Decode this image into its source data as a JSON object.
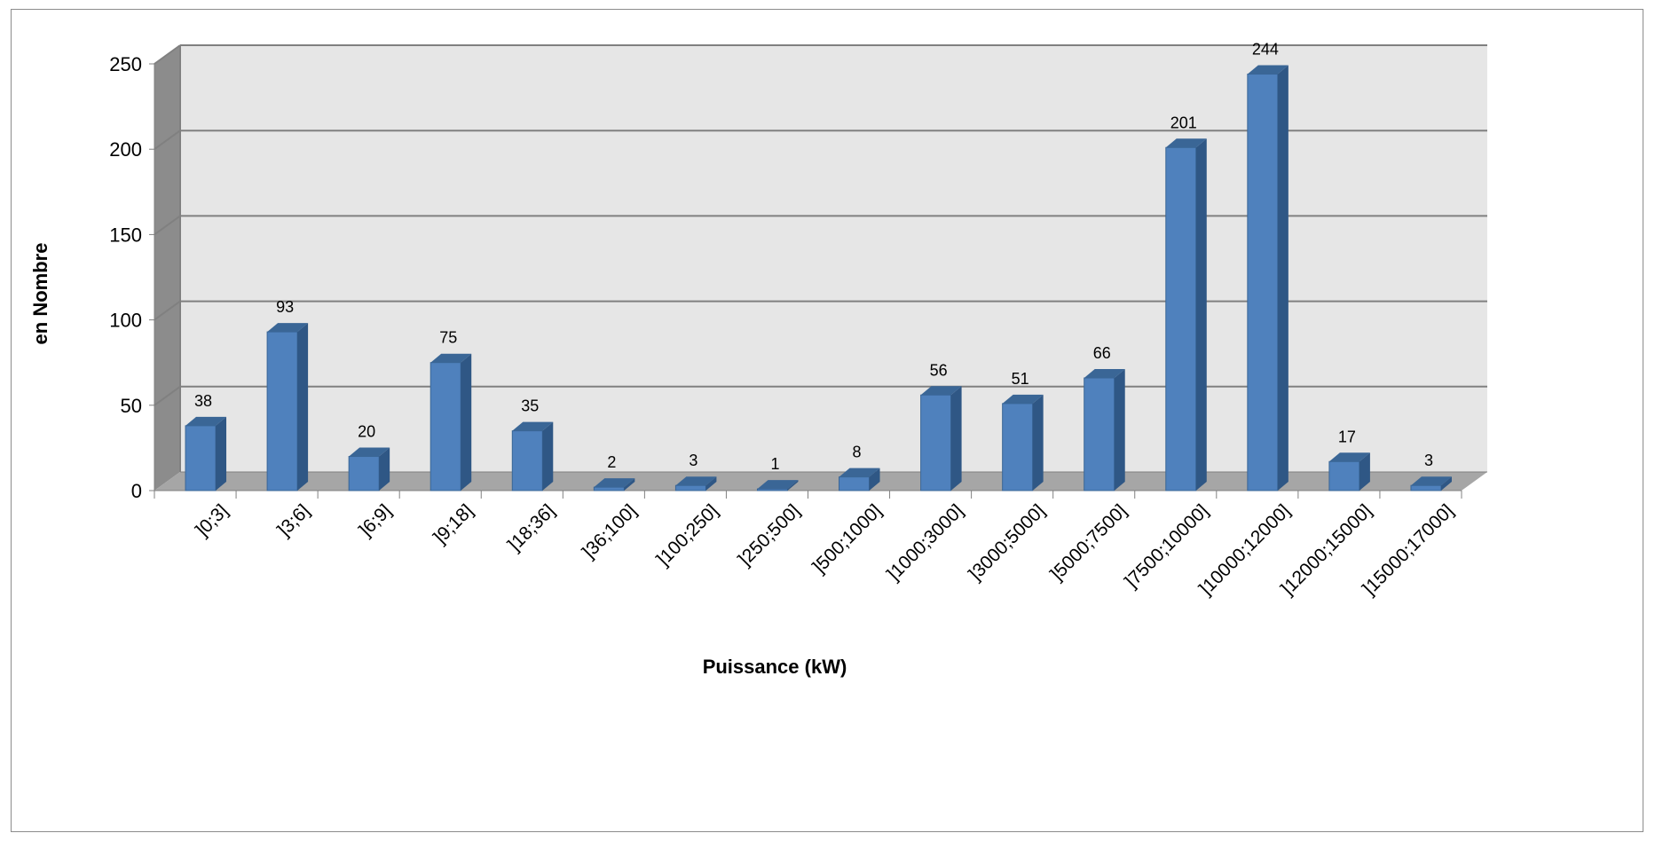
{
  "chart_data": {
    "type": "bar",
    "categories": [
      "]0;3]",
      "]3;6]",
      "]6;9]",
      "]9;18]",
      "]18;36]",
      "]36;100]",
      "]100;250]",
      "]250;500]",
      "]500;1000]",
      "]1000;3000]",
      "]3000;5000]",
      "]5000;7500]",
      "]7500;10000]",
      "]10000;12000]",
      "]12000;15000]",
      "]15000;17000]"
    ],
    "values": [
      38,
      93,
      20,
      75,
      35,
      2,
      3,
      1,
      8,
      56,
      51,
      66,
      201,
      244,
      17,
      3
    ],
    "xlabel": "Puissance (kW)",
    "ylabel": "en Nombre",
    "ylim": [
      0,
      250
    ],
    "yticks": [
      0,
      50,
      100,
      150,
      200,
      250
    ],
    "grid": true,
    "style": "3d",
    "colors": {
      "bar_front": "#4f81bd",
      "bar_side": "#2f5785",
      "bar_top": "#3a6696",
      "wall": "#e6e6e6",
      "side_wall": "#8c8c8c",
      "floor": "#a6a6a6",
      "grid": "#808080"
    }
  }
}
